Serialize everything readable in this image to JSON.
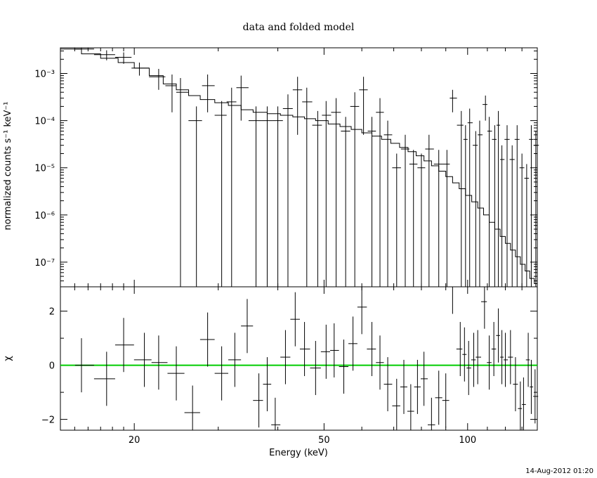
{
  "chart_data": {
    "type": "line",
    "title": "data and folded model",
    "timestamp": "14-Aug-2012 01:20",
    "x_axis": {
      "label": "Energy (keV)",
      "scale": "log",
      "range": [
        14,
        140
      ],
      "tick_labels": [
        "20",
        "50",
        "100"
      ],
      "tick_values": [
        20,
        50,
        100
      ]
    },
    "panels": [
      {
        "name": "spectrum",
        "ylabel": "normalized counts s⁻¹ keV⁻¹",
        "yscale": "log",
        "ylim": [
          3e-08,
          0.0035
        ],
        "tick_labels": [
          "10⁻³",
          "10⁻⁴",
          "10⁻⁵",
          "10⁻⁶",
          "10⁻⁷"
        ],
        "tick_values": [
          0.001,
          0.0001,
          1e-05,
          1e-06,
          1e-07
        ],
        "series": [
          {
            "kind": "data",
            "points": [
              [
                15.5,
                0.0033,
                0.0002
              ],
              [
                17.5,
                0.0025,
                0.0006
              ],
              [
                19.0,
                0.0022,
                0.0006
              ],
              [
                20.5,
                0.0013,
                0.0004
              ],
              [
                22.5,
                0.00085,
                0.0004
              ],
              [
                24.0,
                0.00055,
                0.0004
              ],
              [
                25.0,
                0.0004,
                0.0004
              ],
              [
                27.0,
                0.0001,
                0.0001
              ],
              [
                28.5,
                0.00055,
                0.0004
              ],
              [
                30.5,
                0.00013,
                0.00013
              ],
              [
                32.0,
                0.00025,
                0.00025
              ],
              [
                33.5,
                0.0005,
                0.0004
              ],
              [
                36.0,
                0.0001,
                0.0001
              ],
              [
                38.0,
                0.0001,
                0.0001
              ],
              [
                40.0,
                0.0001,
                0.0001
              ],
              [
                42.0,
                0.00018,
                0.00018
              ],
              [
                44.0,
                0.00045,
                0.0004
              ],
              [
                46.0,
                0.00025,
                0.00025
              ],
              [
                48.5,
                8e-05,
                8e-05
              ],
              [
                50.5,
                0.00013,
                0.00013
              ],
              [
                53.0,
                0.00015,
                0.00015
              ],
              [
                55.5,
                6e-05,
                6e-05
              ],
              [
                58.0,
                0.0002,
                0.0002
              ],
              [
                60.5,
                0.00045,
                0.0004
              ],
              [
                63.0,
                6e-05,
                6e-05
              ],
              [
                65.5,
                0.00015,
                0.00015
              ],
              [
                68.0,
                5e-05,
                5e-05
              ],
              [
                71.0,
                1e-05,
                1e-05
              ],
              [
                74.0,
                2.5e-05,
                2.5e-05
              ],
              [
                77.0,
                1.2e-05,
                1.2e-05
              ],
              [
                80.0,
                1e-05,
                1e-05
              ],
              [
                83.0,
                2.5e-05,
                2.5e-05
              ],
              [
                87.0,
                1.2e-05,
                1.2e-05
              ],
              [
                90.5,
                1.2e-05,
                1.2e-05
              ],
              [
                93.0,
                0.0003,
                0.00015
              ],
              [
                97.0,
                8e-05,
                8e-05
              ],
              [
                99.0,
                4e-05,
                4e-05
              ],
              [
                101.0,
                9e-05,
                9e-05
              ],
              [
                104.0,
                3e-05,
                3e-05
              ],
              [
                106.0,
                5e-05,
                5e-05
              ],
              [
                109.0,
                0.00022,
                0.00012
              ],
              [
                111.0,
                6e-05,
                6e-05
              ],
              [
                114.0,
                4e-05,
                4e-05
              ],
              [
                116.0,
                8e-05,
                8e-05
              ],
              [
                118.0,
                1.5e-05,
                1.5e-05
              ],
              [
                121.0,
                4e-05,
                4e-05
              ],
              [
                124.0,
                1.5e-05,
                1.5e-05
              ],
              [
                127.0,
                4e-05,
                4e-05
              ],
              [
                130.0,
                1e-05,
                1e-05
              ],
              [
                133.0,
                6e-06,
                6e-06
              ],
              [
                136.0,
                4e-05,
                4e-05
              ],
              [
                139.0,
                3e-05,
                3e-05
              ]
            ]
          },
          {
            "kind": "model",
            "steps": [
              [
                14.0,
                0.0033
              ],
              [
                15.5,
                0.0026
              ],
              [
                17.0,
                0.0021
              ],
              [
                18.5,
                0.0017
              ],
              [
                20.0,
                0.0013
              ],
              [
                21.5,
                0.0009
              ],
              [
                23.0,
                0.0006
              ],
              [
                24.5,
                0.00045
              ],
              [
                26.0,
                0.00034
              ],
              [
                27.5,
                0.00028
              ],
              [
                29.5,
                0.00024
              ],
              [
                31.5,
                0.00021
              ],
              [
                33.5,
                0.00017
              ],
              [
                35.5,
                0.00015
              ],
              [
                38.0,
                0.00014
              ],
              [
                40.5,
                0.00013
              ],
              [
                43.0,
                0.00012
              ],
              [
                45.5,
                0.00011
              ],
              [
                48.0,
                0.0001
              ],
              [
                51.0,
                8.5e-05
              ],
              [
                54.0,
                7.5e-05
              ],
              [
                57.0,
                6.5e-05
              ],
              [
                60.0,
                5.5e-05
              ],
              [
                63.0,
                4.7e-05
              ],
              [
                66.0,
                4e-05
              ],
              [
                69.0,
                3.3e-05
              ],
              [
                72.0,
                2.7e-05
              ],
              [
                75.0,
                2.2e-05
              ],
              [
                78.0,
                1.8e-05
              ],
              [
                81.0,
                1.4e-05
              ],
              [
                84.0,
                1.1e-05
              ],
              [
                87.0,
                8.5e-06
              ],
              [
                90.0,
                6.5e-06
              ],
              [
                93.0,
                4.8e-06
              ],
              [
                96.0,
                3.6e-06
              ],
              [
                99.0,
                2.6e-06
              ],
              [
                102.0,
                1.9e-06
              ],
              [
                105.0,
                1.4e-06
              ],
              [
                108.0,
                1e-06
              ],
              [
                111.0,
                7e-07
              ],
              [
                114.0,
                5e-07
              ],
              [
                117.0,
                3.5e-07
              ],
              [
                120.0,
                2.5e-07
              ],
              [
                123.0,
                1.8e-07
              ],
              [
                126.0,
                1.3e-07
              ],
              [
                129.0,
                9e-08
              ],
              [
                132.0,
                6.5e-08
              ],
              [
                135.0,
                4.5e-08
              ],
              [
                138.0,
                3.5e-08
              ],
              [
                140.0,
                3.5e-08
              ]
            ]
          }
        ]
      },
      {
        "name": "residuals",
        "ylabel": "χ",
        "yscale": "linear",
        "ylim": [
          -2.4,
          2.9
        ],
        "tick_labels": [
          "2",
          "0",
          "−2"
        ],
        "tick_values": [
          2,
          0,
          -2
        ],
        "zero_line_color": "#00cc00",
        "points": [
          [
            15.5,
            0.0
          ],
          [
            17.5,
            -0.5
          ],
          [
            19.0,
            0.75
          ],
          [
            21.0,
            0.2
          ],
          [
            22.5,
            0.1
          ],
          [
            24.5,
            -0.3
          ],
          [
            26.5,
            -1.75
          ],
          [
            28.5,
            0.95
          ],
          [
            30.5,
            -0.3
          ],
          [
            32.5,
            0.2
          ],
          [
            34.5,
            1.45
          ],
          [
            36.5,
            -1.3
          ],
          [
            38.0,
            -0.7
          ],
          [
            39.5,
            -2.2
          ],
          [
            41.5,
            0.3
          ],
          [
            43.5,
            1.7
          ],
          [
            45.5,
            0.6
          ],
          [
            48.0,
            -0.1
          ],
          [
            50.5,
            0.5
          ],
          [
            52.5,
            0.55
          ],
          [
            55.0,
            -0.05
          ],
          [
            57.5,
            0.8
          ],
          [
            60.0,
            2.15
          ],
          [
            63.0,
            0.6
          ],
          [
            65.5,
            0.1
          ],
          [
            68.0,
            -0.7
          ],
          [
            71.0,
            -1.5
          ],
          [
            73.5,
            -0.8
          ],
          [
            76.0,
            -1.7
          ],
          [
            78.5,
            -0.8
          ],
          [
            81.0,
            -0.5
          ],
          [
            84.0,
            -2.2
          ],
          [
            87.0,
            -1.2
          ],
          [
            90.0,
            -1.3
          ],
          [
            93.0,
            2.9
          ],
          [
            96.5,
            0.6
          ],
          [
            98.5,
            0.4
          ],
          [
            100.5,
            -0.1
          ],
          [
            103.0,
            0.2
          ],
          [
            105.0,
            0.3
          ],
          [
            108.5,
            2.35
          ],
          [
            111.0,
            0.1
          ],
          [
            113.5,
            0.6
          ],
          [
            116.0,
            1.1
          ],
          [
            118.0,
            0.3
          ],
          [
            120.0,
            0.2
          ],
          [
            123.0,
            0.3
          ],
          [
            126.0,
            -0.7
          ],
          [
            129.0,
            -1.6
          ],
          [
            131.0,
            -1.45
          ],
          [
            134.0,
            0.2
          ],
          [
            136.0,
            -0.8
          ],
          [
            138.5,
            -1.15
          ]
        ]
      }
    ]
  }
}
